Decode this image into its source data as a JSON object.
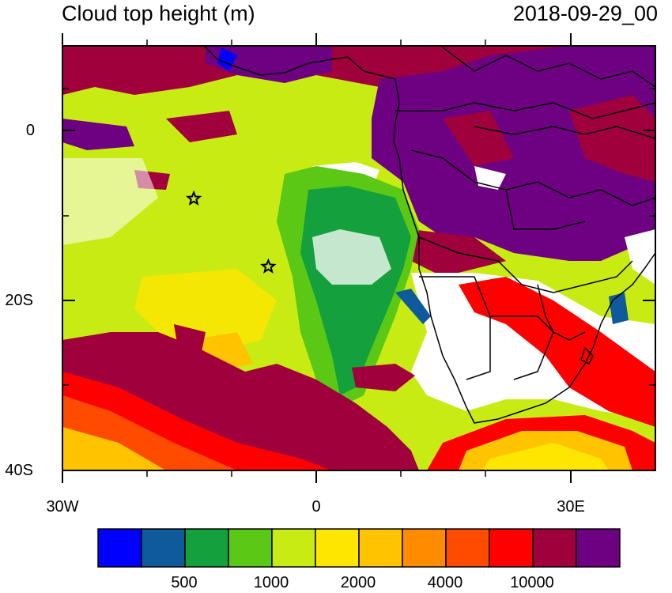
{
  "title": "Cloud top height (m)",
  "date": "2018-09-29_00",
  "lat_labels": [
    "0",
    "20S",
    "40S"
  ],
  "lon_labels": [
    "30W",
    "0",
    "30E"
  ],
  "colorbar": {
    "colors": [
      "#0000ff",
      "#0f5a9a",
      "#14a03c",
      "#5ac814",
      "#c8eb14",
      "#ffe600",
      "#ffc300",
      "#ff8c00",
      "#ff4b00",
      "#ff0000",
      "#a0003c",
      "#6e0082"
    ],
    "labels": [
      "500",
      "1000",
      "2000",
      "4000",
      "10000"
    ]
  },
  "markers": [
    {
      "name": "star-marker",
      "lon": -14.5,
      "lat": -8
    },
    {
      "name": "star-marker",
      "lon": -5.7,
      "lat": -16
    }
  ]
}
